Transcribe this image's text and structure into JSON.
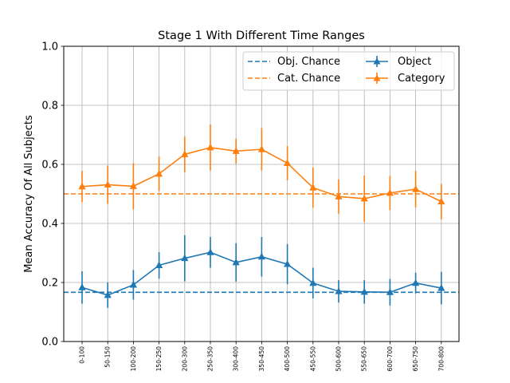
{
  "chart_data": {
    "type": "line",
    "title": "Stage 1 With Different Time Ranges",
    "xlabel": "",
    "ylabel": "Mean Accuracy Of All Subjects",
    "ylim": [
      0.0,
      1.0
    ],
    "yticks": [
      "0.0",
      "0.2",
      "0.4",
      "0.6",
      "0.8",
      "1.0"
    ],
    "grid": true,
    "legend_position": "top-right",
    "categories": [
      "0-100",
      "50-150",
      "100-200",
      "150-250",
      "200-300",
      "250-350",
      "300-400",
      "350-450",
      "400-500",
      "450-550",
      "500-600",
      "550-650",
      "600-700",
      "650-750",
      "700-800"
    ],
    "series": [
      {
        "name": "Object",
        "color": "#1f77b4",
        "marker": "triangle-up",
        "values": [
          0.183,
          0.157,
          0.192,
          0.258,
          0.282,
          0.302,
          0.268,
          0.287,
          0.262,
          0.198,
          0.17,
          0.168,
          0.167,
          0.198,
          0.181
        ],
        "errors": [
          0.055,
          0.043,
          0.05,
          0.045,
          0.078,
          0.052,
          0.065,
          0.067,
          0.068,
          0.052,
          0.038,
          0.04,
          0.045,
          0.035,
          0.055
        ]
      },
      {
        "name": "Category",
        "color": "#ff7f0e",
        "marker": "triangle-up",
        "values": [
          0.525,
          0.531,
          0.526,
          0.568,
          0.634,
          0.657,
          0.645,
          0.651,
          0.604,
          0.521,
          0.491,
          0.484,
          0.503,
          0.516,
          0.474
        ],
        "errors": [
          0.053,
          0.065,
          0.078,
          0.058,
          0.06,
          0.078,
          0.042,
          0.072,
          0.058,
          0.068,
          0.058,
          0.078,
          0.058,
          0.062,
          0.06
        ]
      }
    ],
    "reference_lines": [
      {
        "name": "Obj. Chance",
        "value": 0.1667,
        "color": "#1f77b4",
        "style": "dashed"
      },
      {
        "name": "Cat. Chance",
        "value": 0.5,
        "color": "#ff7f0e",
        "style": "dashed"
      }
    ]
  }
}
